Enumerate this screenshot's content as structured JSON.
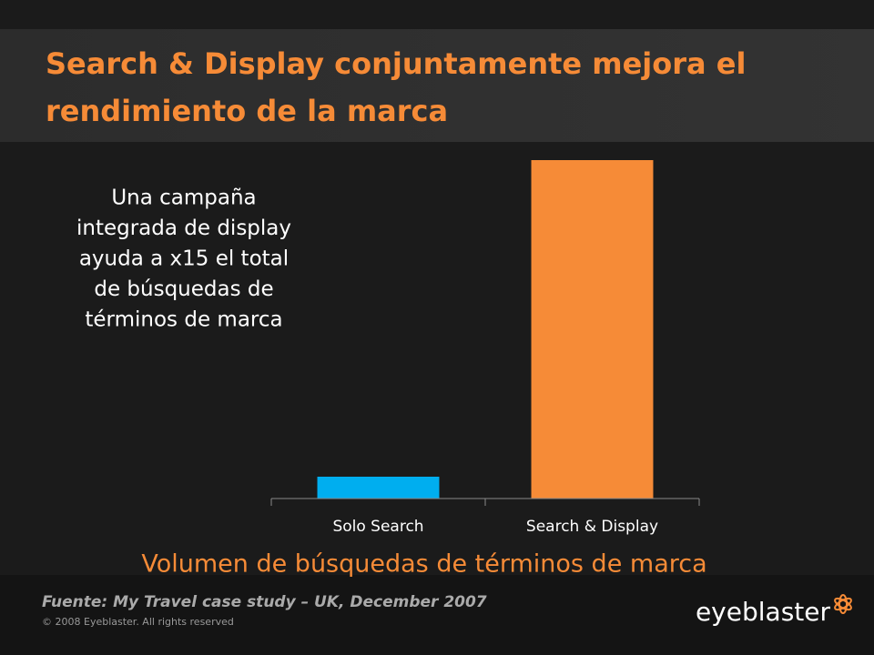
{
  "chart_data": {
    "type": "bar",
    "title": [
      "Search & Display conjuntamente mejora el",
      "rendimiento de la marca"
    ],
    "annotation": [
      "Una campaña",
      "integrada de display",
      "ayuda a x15 el total",
      "de búsquedas de",
      "términos de marca"
    ],
    "categories": [
      "Solo Search",
      "Search & Display"
    ],
    "values": [
      1,
      15.5
    ],
    "colors": [
      "#00aeef",
      "#f68b37"
    ],
    "ylim": [
      0,
      16
    ],
    "x_label": "Volumen de búsquedas de términos de marca",
    "source": "Fuente: My Travel case study – UK, December 2007",
    "copyright": "© 2008 Eyeblaster. All rights reserved",
    "logo": "eyeblaster"
  }
}
